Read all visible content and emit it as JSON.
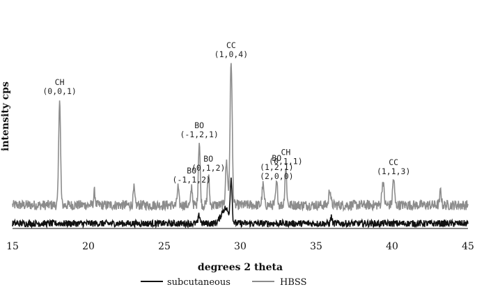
{
  "chart_data": {
    "type": "line",
    "xlabel": "degrees 2 theta",
    "ylabel": "intensity cps",
    "xlim": [
      15,
      45
    ],
    "x_ticks": [
      15,
      20,
      25,
      30,
      35,
      40,
      45
    ],
    "x_tick_labels": [
      "15",
      "20",
      "25",
      "30",
      "35",
      "40",
      "45"
    ],
    "ylim": [
      0,
      100
    ],
    "grid": false,
    "legend_position": "bottom",
    "colors": {
      "subcutaneous": "#111111",
      "HBSS": "#8c8c8c"
    },
    "series": [
      {
        "name": "HBSS",
        "baseline": 14,
        "noise_amplitude": 3,
        "peaks": [
          {
            "x": 18.1,
            "y": 78,
            "width": 0.06
          },
          {
            "x": 20.4,
            "y": 22,
            "width": 0.05
          },
          {
            "x": 23.0,
            "y": 24,
            "width": 0.05
          },
          {
            "x": 25.9,
            "y": 25,
            "width": 0.05
          },
          {
            "x": 26.8,
            "y": 25,
            "width": 0.05
          },
          {
            "x": 27.3,
            "y": 52,
            "width": 0.06
          },
          {
            "x": 27.9,
            "y": 32,
            "width": 0.06
          },
          {
            "x": 29.1,
            "y": 40,
            "width": 0.07
          },
          {
            "x": 29.4,
            "y": 100,
            "width": 0.07
          },
          {
            "x": 31.5,
            "y": 26,
            "width": 0.06
          },
          {
            "x": 32.4,
            "y": 27,
            "width": 0.06
          },
          {
            "x": 33.0,
            "y": 36,
            "width": 0.06
          },
          {
            "x": 35.9,
            "y": 24,
            "width": 0.06
          },
          {
            "x": 39.4,
            "y": 28,
            "width": 0.07
          },
          {
            "x": 40.1,
            "y": 30,
            "width": 0.06
          },
          {
            "x": 43.2,
            "y": 23,
            "width": 0.05
          }
        ]
      },
      {
        "name": "subcutaneous",
        "baseline": 3,
        "noise_amplitude": 2,
        "peaks": [
          {
            "x": 27.3,
            "y": 8,
            "width": 0.06
          },
          {
            "x": 29.0,
            "y": 12,
            "width": 0.25
          },
          {
            "x": 29.4,
            "y": 28,
            "width": 0.06
          },
          {
            "x": 36.0,
            "y": 7,
            "width": 0.05
          }
        ]
      }
    ],
    "annotations": [
      {
        "lines": [
          "CH",
          "(0,0,1)"
        ],
        "x": 18.1,
        "y": 78
      },
      {
        "lines": [
          "CC",
          "(1,0,4)"
        ],
        "x": 29.4,
        "y": 100
      },
      {
        "lines": [
          "BO",
          "(-1,2,1)"
        ],
        "x": 27.3,
        "y": 52
      },
      {
        "lines": [
          "BO",
          "(0,1,2)"
        ],
        "x": 27.9,
        "y": 32
      },
      {
        "lines": [
          "BO",
          "(-1,1,2)"
        ],
        "x": 26.8,
        "y": 25
      },
      {
        "lines": [
          "CH",
          "(0,1,1)"
        ],
        "x": 33.0,
        "y": 36
      },
      {
        "lines": [
          "BO",
          "(1,2,1)",
          "(2,0,0)"
        ],
        "x": 32.4,
        "y": 27
      },
      {
        "lines": [
          "CC",
          "(1,1,3)"
        ],
        "x": 40.1,
        "y": 30
      }
    ]
  }
}
